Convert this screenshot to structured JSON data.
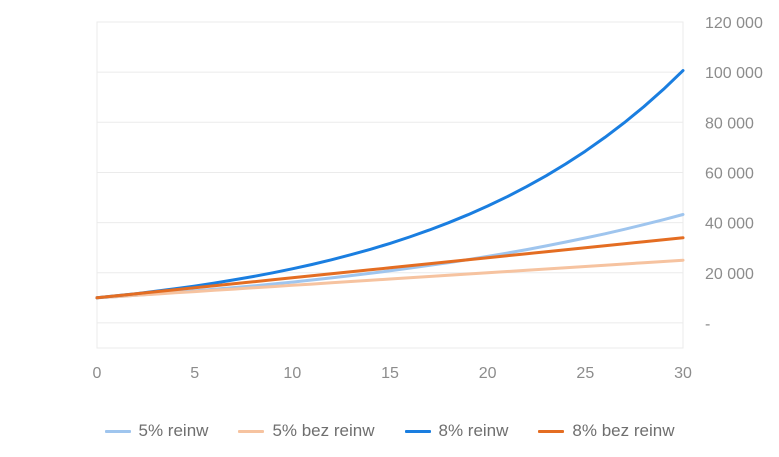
{
  "chart_data": {
    "type": "line",
    "title": "",
    "xlabel": "",
    "ylabel": "",
    "x": [
      0,
      1,
      2,
      3,
      4,
      5,
      6,
      7,
      8,
      9,
      10,
      11,
      12,
      13,
      14,
      15,
      16,
      17,
      18,
      19,
      20,
      21,
      22,
      23,
      24,
      25,
      26,
      27,
      28,
      29,
      30
    ],
    "xlim": [
      0,
      30
    ],
    "ylim": [
      -10000,
      120000
    ],
    "x_ticks": [
      0,
      5,
      10,
      15,
      20,
      25,
      30
    ],
    "x_tick_labels": [
      "0",
      "5",
      "10",
      "15",
      "20",
      "25",
      "30"
    ],
    "y_ticks": [
      0,
      20000,
      40000,
      60000,
      80000,
      100000,
      120000
    ],
    "y_tick_labels": [
      "-",
      "20 000",
      "40 000",
      "60 000",
      "80 000",
      "100 000",
      "120 000"
    ],
    "grid": true,
    "legend_position": "bottom",
    "series": [
      {
        "name": "5% reinw",
        "color": "#9fc5ee",
        "values": [
          10000,
          10500,
          11025,
          11576,
          12155,
          12763,
          13401,
          14071,
          14775,
          15513,
          16289,
          17103,
          17959,
          18856,
          19799,
          20789,
          21829,
          22920,
          24066,
          25270,
          26533,
          27860,
          29253,
          30715,
          32251,
          33864,
          35557,
          37335,
          39201,
          41161,
          43219
        ]
      },
      {
        "name": "5% bez reinw",
        "color": "#f6c3a0",
        "values": [
          10000,
          10500,
          11000,
          11500,
          12000,
          12500,
          13000,
          13500,
          14000,
          14500,
          15000,
          15500,
          16000,
          16500,
          17000,
          17500,
          18000,
          18500,
          19000,
          19500,
          20000,
          20500,
          21000,
          21500,
          22000,
          22500,
          23000,
          23500,
          24000,
          24500,
          25000
        ]
      },
      {
        "name": "8% reinw",
        "color": "#1a7ee0",
        "values": [
          10000,
          10800,
          11664,
          12597,
          13605,
          14693,
          15869,
          17138,
          18509,
          19990,
          21589,
          23316,
          25182,
          27196,
          29372,
          31722,
          34259,
          37000,
          39960,
          43157,
          46610,
          50338,
          54365,
          58715,
          63412,
          68485,
          73964,
          79881,
          86271,
          93173,
          100627
        ]
      },
      {
        "name": "8% bez reinw",
        "color": "#e46d22",
        "values": [
          10000,
          10800,
          11600,
          12400,
          13200,
          14000,
          14800,
          15600,
          16400,
          17200,
          18000,
          18800,
          19600,
          20400,
          21200,
          22000,
          22800,
          23600,
          24400,
          25200,
          26000,
          26800,
          27600,
          28400,
          29200,
          30000,
          30800,
          31600,
          32400,
          33200,
          34000
        ]
      }
    ]
  }
}
